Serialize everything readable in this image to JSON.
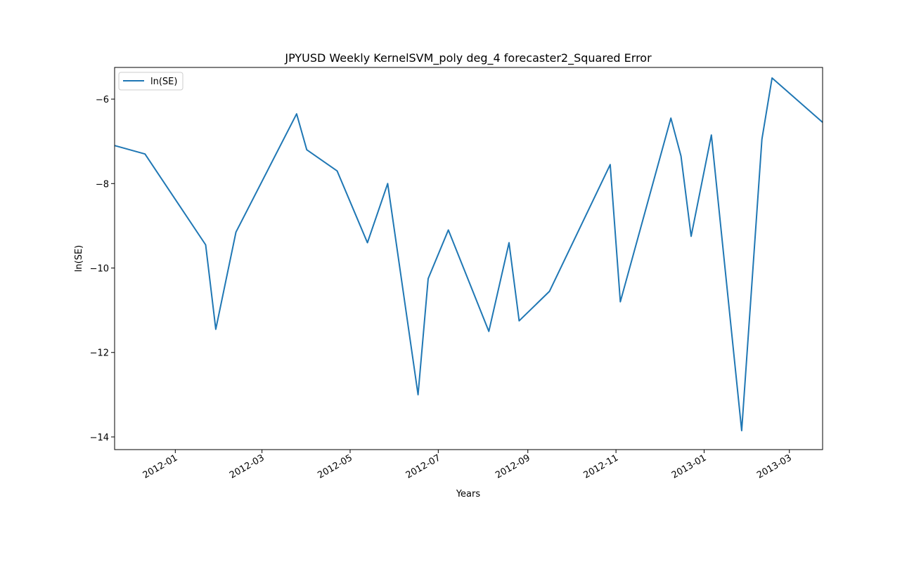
{
  "chart_data": {
    "type": "line",
    "title": "JPYUSD Weekly KernelSVM_poly deg_4 forecaster2_Squared Error",
    "xlabel": "Years",
    "ylabel": "ln(SE)",
    "legend": {
      "position": "upper-left",
      "entries": [
        "ln(SE)"
      ]
    },
    "grid": false,
    "xlim": [
      "2011-11-20",
      "2013-03-24"
    ],
    "ylim": [
      -14.3,
      -5.25
    ],
    "x_tick_labels": [
      "2012-01",
      "2012-03",
      "2012-05",
      "2012-07",
      "2012-09",
      "2012-11",
      "2013-01",
      "2013-03"
    ],
    "y_tick_labels": [
      "−14",
      "−12",
      "−10",
      "−8",
      "−6"
    ],
    "series": [
      {
        "name": "ln(SE)",
        "color": "#1f77b4",
        "x": [
          "2011-11-20",
          "2011-12-11",
          "2012-01-22",
          "2012-01-29",
          "2012-02-12",
          "2012-03-25",
          "2012-04-01",
          "2012-04-22",
          "2012-05-13",
          "2012-05-27",
          "2012-06-17",
          "2012-06-24",
          "2012-07-08",
          "2012-08-05",
          "2012-08-19",
          "2012-08-26",
          "2012-09-16",
          "2012-10-28",
          "2012-11-04",
          "2012-12-09",
          "2012-12-16",
          "2012-12-23",
          "2013-01-06",
          "2013-01-27",
          "2013-02-10",
          "2013-02-17",
          "2013-03-24"
        ],
        "y": [
          -7.1,
          -7.3,
          -9.45,
          -11.45,
          -9.15,
          -6.35,
          -7.2,
          -7.7,
          -9.4,
          -8.0,
          -13.0,
          -10.25,
          -9.1,
          -11.5,
          -9.4,
          -11.25,
          -10.55,
          -7.55,
          -10.8,
          -6.45,
          -7.35,
          -9.25,
          -6.85,
          -13.85,
          -6.95,
          -5.5,
          -6.55
        ]
      }
    ]
  }
}
